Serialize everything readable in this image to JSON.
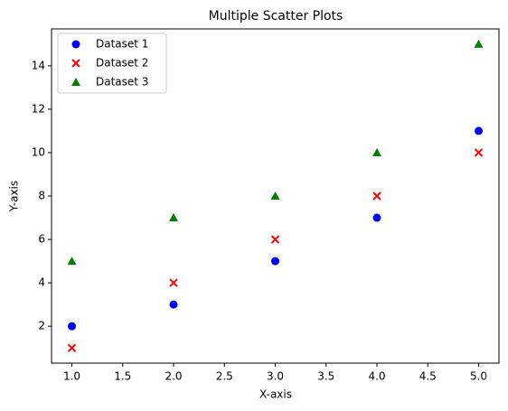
{
  "chart_data": {
    "type": "scatter",
    "title": "Multiple Scatter Plots",
    "x_label": "X-axis",
    "y_label": "Y-axis",
    "x": [
      1,
      2,
      3,
      4,
      5
    ],
    "series": [
      {
        "name": "Dataset 1",
        "color": "#0000ff",
        "marker": "circle",
        "values": [
          2,
          3,
          5,
          7,
          11
        ]
      },
      {
        "name": "Dataset 2",
        "color": "#ff0000",
        "marker": "x",
        "values": [
          1,
          4,
          6,
          8,
          10
        ]
      },
      {
        "name": "Dataset 3",
        "color": "#008000",
        "marker": "triangle",
        "values": [
          5,
          7,
          8,
          10,
          15
        ]
      }
    ],
    "xlim": [
      0.8,
      5.2
    ],
    "xticks": [
      {
        "value": 1,
        "label": "1.0"
      },
      {
        "value": 1.5,
        "label": "1.5"
      },
      {
        "value": 2,
        "label": "2.0"
      },
      {
        "value": 2.5,
        "label": "2.5"
      },
      {
        "value": 3,
        "label": "3.0"
      },
      {
        "value": 3.5,
        "label": "3.5"
      },
      {
        "value": 4,
        "label": "4.0"
      },
      {
        "value": 4.5,
        "label": "4.5"
      },
      {
        "value": 5,
        "label": "5.0"
      }
    ],
    "ylim": [
      0.3,
      15.7
    ],
    "yticks": [
      2,
      4,
      6,
      8,
      10,
      12,
      14
    ],
    "grid": false,
    "legend": "upper left"
  }
}
